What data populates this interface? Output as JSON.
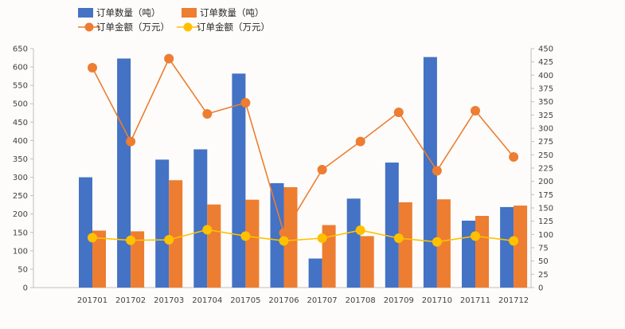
{
  "chart_data": {
    "type": "bar+line",
    "categories": [
      "201701",
      "201702",
      "201703",
      "201704",
      "201705",
      "201706",
      "201707",
      "201708",
      "201709",
      "201710",
      "201711",
      "201712"
    ],
    "series": [
      {
        "name": "订单数量（吨）",
        "type": "bar",
        "axis": "left",
        "color": "#4472c4",
        "values": [
          300,
          623,
          348,
          376,
          582,
          284,
          79,
          242,
          340,
          627,
          182,
          219
        ]
      },
      {
        "name": "订单数量（吨）",
        "type": "bar",
        "axis": "left",
        "color": "#ed7d31",
        "values": [
          155,
          153,
          292,
          226,
          239,
          273,
          170,
          140,
          232,
          240,
          195,
          223
        ]
      },
      {
        "name": "订单金额（万元）",
        "type": "line",
        "axis": "right",
        "color": "#ed7d31",
        "values": [
          414,
          275,
          431,
          327,
          348,
          103,
          222,
          275,
          330,
          220,
          333,
          246
        ]
      },
      {
        "name": "订单金额（万元）",
        "type": "line",
        "axis": "right",
        "color": "#ffc000",
        "values": [
          94,
          89,
          90,
          109,
          97,
          88,
          93,
          108,
          93,
          86,
          97,
          88
        ]
      }
    ],
    "y_left": {
      "min": 0,
      "max": 650,
      "step": 50
    },
    "y_right": {
      "min": 0,
      "max": 450,
      "step": 25
    },
    "legend_position": "top-left",
    "grid": false
  }
}
